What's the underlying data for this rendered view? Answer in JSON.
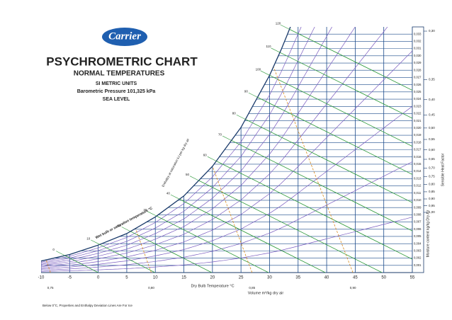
{
  "header": {
    "logo": "Carrier",
    "title": "PSYCHROMETRIC CHART",
    "subtitle": "NORMAL TEMPERATURES",
    "units": "SI METRIC UNITS",
    "pressure": "Barometric Pressure 101,325 kPa",
    "altitude": "SEA LEVEL"
  },
  "chart_data": {
    "type": "psychrometric",
    "xlabel": "Dry Bulb Temperature °C",
    "ylabel": "Moisture content kg/kg Dry Air",
    "volume_label": "Volume m³/kg dry air",
    "shf_label": "Sensible Heat Factor",
    "enthalpy_label": "Enthalpy at saturation kJ per kg dry air",
    "wetbulb_label": "Wet bulb or saturation temperature °C",
    "footnote": "Below 0°C, Properties and Enthalpy Deviation Lines Are For Ice",
    "xlim": [
      -10,
      55
    ],
    "xticks": [
      -10,
      -5,
      0,
      5,
      10,
      15,
      20,
      25,
      30,
      35,
      40,
      45,
      50,
      55
    ],
    "ylim": [
      0,
      0.034
    ],
    "yticks": [
      {
        "value": 0.001,
        "label": "0,001"
      },
      {
        "value": 0.002,
        "label": "0,002"
      },
      {
        "value": 0.003,
        "label": "0,003"
      },
      {
        "value": 0.004,
        "label": "0,004"
      },
      {
        "value": 0.005,
        "label": "0,005"
      },
      {
        "value": 0.006,
        "label": "0,006"
      },
      {
        "value": 0.007,
        "label": "0,007"
      },
      {
        "value": 0.008,
        "label": "0,008"
      },
      {
        "value": 0.009,
        "label": "0,009"
      },
      {
        "value": 0.01,
        "label": "0,010"
      },
      {
        "value": 0.011,
        "label": "0,011"
      },
      {
        "value": 0.012,
        "label": "0,012"
      },
      {
        "value": 0.013,
        "label": "0,013"
      },
      {
        "value": 0.014,
        "label": "0,014"
      },
      {
        "value": 0.015,
        "label": "0,015"
      },
      {
        "value": 0.016,
        "label": "0,016"
      },
      {
        "value": 0.017,
        "label": "0,017"
      },
      {
        "value": 0.018,
        "label": "0,018"
      },
      {
        "value": 0.019,
        "label": "0,019"
      },
      {
        "value": 0.02,
        "label": "0,020"
      },
      {
        "value": 0.021,
        "label": "0,021"
      },
      {
        "value": 0.022,
        "label": "0,022"
      },
      {
        "value": 0.023,
        "label": "0,023"
      },
      {
        "value": 0.024,
        "label": "0,024"
      },
      {
        "value": 0.025,
        "label": "0,025"
      },
      {
        "value": 0.026,
        "label": "0,026"
      },
      {
        "value": 0.027,
        "label": "0,027"
      },
      {
        "value": 0.028,
        "label": "0,028"
      },
      {
        "value": 0.029,
        "label": "0,029"
      },
      {
        "value": 0.03,
        "label": "0,030"
      },
      {
        "value": 0.031,
        "label": "0,031"
      },
      {
        "value": 0.032,
        "label": "0,032"
      },
      {
        "value": 0.033,
        "label": "0,033"
      }
    ],
    "saturation": {
      "x": [
        -10,
        -5,
        0,
        5,
        10,
        15,
        20,
        25,
        30,
        32,
        33,
        34
      ],
      "values": [
        0.0016,
        0.0025,
        0.0038,
        0.0054,
        0.0077,
        0.0106,
        0.0147,
        0.0201,
        0.0273,
        0.0308,
        0.0327,
        0.0347
      ]
    },
    "rh_lines": [
      10,
      20,
      30,
      40,
      50,
      60,
      70,
      80,
      90
    ],
    "enthalpy_lines": [
      0,
      10,
      20,
      30,
      40,
      50,
      60,
      70,
      80,
      90,
      100,
      110,
      120
    ],
    "volume_lines": [
      {
        "value": 0.75,
        "label": "0,75"
      },
      {
        "value": 0.8,
        "label": "0,80"
      },
      {
        "value": 0.85,
        "label": "0,85"
      },
      {
        "value": 0.9,
        "label": "0,90"
      }
    ],
    "shf_ticks": [
      {
        "value": 0.3,
        "label": "0,30"
      },
      {
        "value": 0.35,
        "label": "0,35"
      },
      {
        "value": 0.4,
        "label": "0,40"
      },
      {
        "value": 0.45,
        "label": "0,45"
      },
      {
        "value": 0.5,
        "label": "0,50"
      },
      {
        "value": 0.55,
        "label": "0,55"
      },
      {
        "value": 0.6,
        "label": "0,60"
      },
      {
        "value": 0.65,
        "label": "0,65"
      },
      {
        "value": 0.7,
        "label": "0,70"
      },
      {
        "value": 0.75,
        "label": "0,75"
      },
      {
        "value": 0.8,
        "label": "0,80"
      },
      {
        "value": 0.85,
        "label": "0,85"
      },
      {
        "value": 0.9,
        "label": "0,90"
      },
      {
        "value": 0.95,
        "label": "0,95"
      },
      {
        "value": 1,
        "label": "1,00"
      }
    ]
  }
}
